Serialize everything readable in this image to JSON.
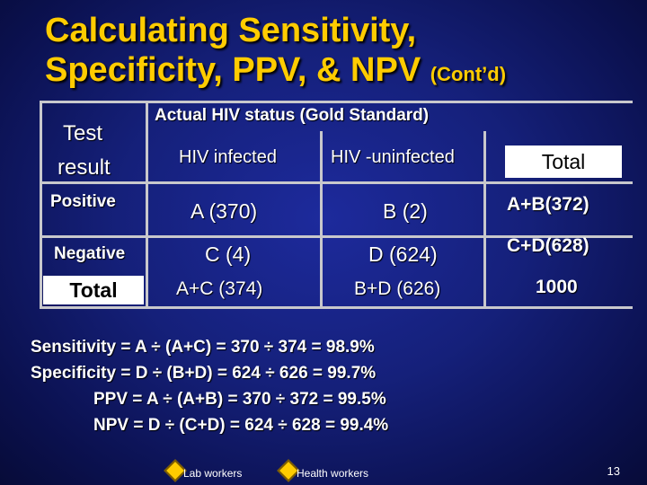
{
  "title_line1": "Calculating Sensitivity,",
  "title_line2": "Specificity, PPV, & NPV",
  "title_suffix": "(Cont’d)",
  "table": {
    "test_header_1": "Test",
    "test_header_2": "result",
    "gold_header": "Actual HIV status (Gold Standard)",
    "col_infected": "HIV infected",
    "col_uninfected": "HIV -uninfected",
    "col_total": "Total",
    "rows": [
      {
        "label": "Positive",
        "a": "A (370)",
        "b": "B (2)",
        "total": "A+B(372)"
      },
      {
        "label": "Negative",
        "a": "C (4)",
        "b": "D (624)",
        "total": "C+D(628)"
      },
      {
        "label": "Total",
        "a": "A+C (374)",
        "b": "B+D (626)",
        "total": "1000"
      }
    ]
  },
  "formulas": [
    "Sensitivity = A ÷ (A+C) = 370 ÷ 374 = 98.9%",
    "Specificity = D ÷ (B+D) = 624 ÷ 626 = 99.7%",
    "PPV = A ÷ (A+B) = 370 ÷ 372 = 99.5%",
    "NPV = D ÷ (C+D) = 624 ÷ 628 = 99.4%"
  ],
  "legend": {
    "item1": "Lab workers",
    "item2": "Health workers"
  },
  "page_number": "13",
  "colors": {
    "title": "#ffcc00",
    "background": "#15207a",
    "grid": "#c8c8cc"
  },
  "icons": {
    "legend_marker": "diamond-icon"
  }
}
